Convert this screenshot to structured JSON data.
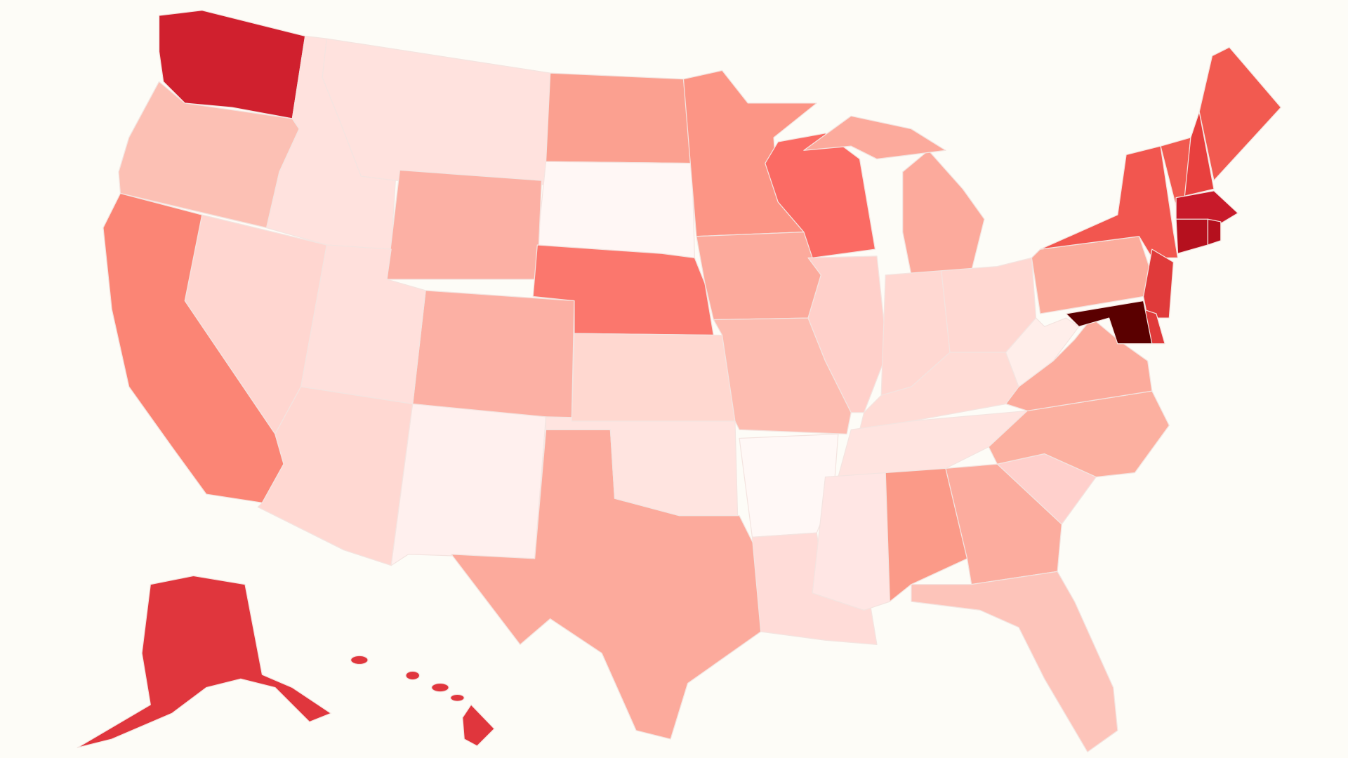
{
  "map": {
    "background": "#fdfcf7",
    "border": "#f4e4e0",
    "regions": [
      {
        "color": "#d0202e"
      },
      {
        "color": "#fcc0b4"
      },
      {
        "color": "#ffe2de"
      },
      {
        "color": "#ffe2de"
      },
      {
        "color": "#fba090"
      },
      {
        "color": "#fff7f5"
      },
      {
        "color": "#fcb0a4"
      },
      {
        "color": "#fb776d"
      },
      {
        "color": "#fcb0a4"
      },
      {
        "color": "#ffe0dc"
      },
      {
        "color": "#ffd6d0"
      },
      {
        "color": "#fb8575"
      },
      {
        "color": "#ffd8d2"
      },
      {
        "color": "#fff0ee"
      },
      {
        "color": "#fcaa9c"
      },
      {
        "color": "#ffe4e0"
      },
      {
        "color": "#ffd8d0"
      },
      {
        "color": "#fc9585"
      },
      {
        "color": "#fcaa9c"
      },
      {
        "color": "#fdbcb0"
      },
      {
        "color": "#fff8f6"
      },
      {
        "color": "#ffdcd8"
      },
      {
        "color": "#fb6b64"
      },
      {
        "color": "#ffd0ca"
      },
      {
        "color": "#fcaa9c"
      },
      {
        "color": "#ffd8d2"
      },
      {
        "color": "#ffd8d2"
      },
      {
        "color": "#ffdcd6"
      },
      {
        "color": "#ffe4e0"
      },
      {
        "color": "#ffe6e4"
      },
      {
        "color": "#fb9a88"
      },
      {
        "color": "#fcac9e"
      },
      {
        "color": "#fdc4ba"
      },
      {
        "color": "#ffd0cc"
      },
      {
        "color": "#fcb0a0"
      },
      {
        "color": "#fcab9c"
      },
      {
        "color": "#ffeeea"
      },
      {
        "color": "#fcac9c"
      },
      {
        "color": "#f2564f"
      },
      {
        "color": "#e03a3a"
      },
      {
        "color": "#e03a3a"
      },
      {
        "color": "#5a0000"
      },
      {
        "color": "#f25a50"
      },
      {
        "color": "#e8403e"
      },
      {
        "color": "#f25a50"
      },
      {
        "color": "#c81a2a"
      },
      {
        "color": "#b5101e"
      },
      {
        "color": "#b5101e"
      },
      {
        "color": "#e0363d"
      },
      {
        "color": "#e0363d"
      }
    ]
  }
}
